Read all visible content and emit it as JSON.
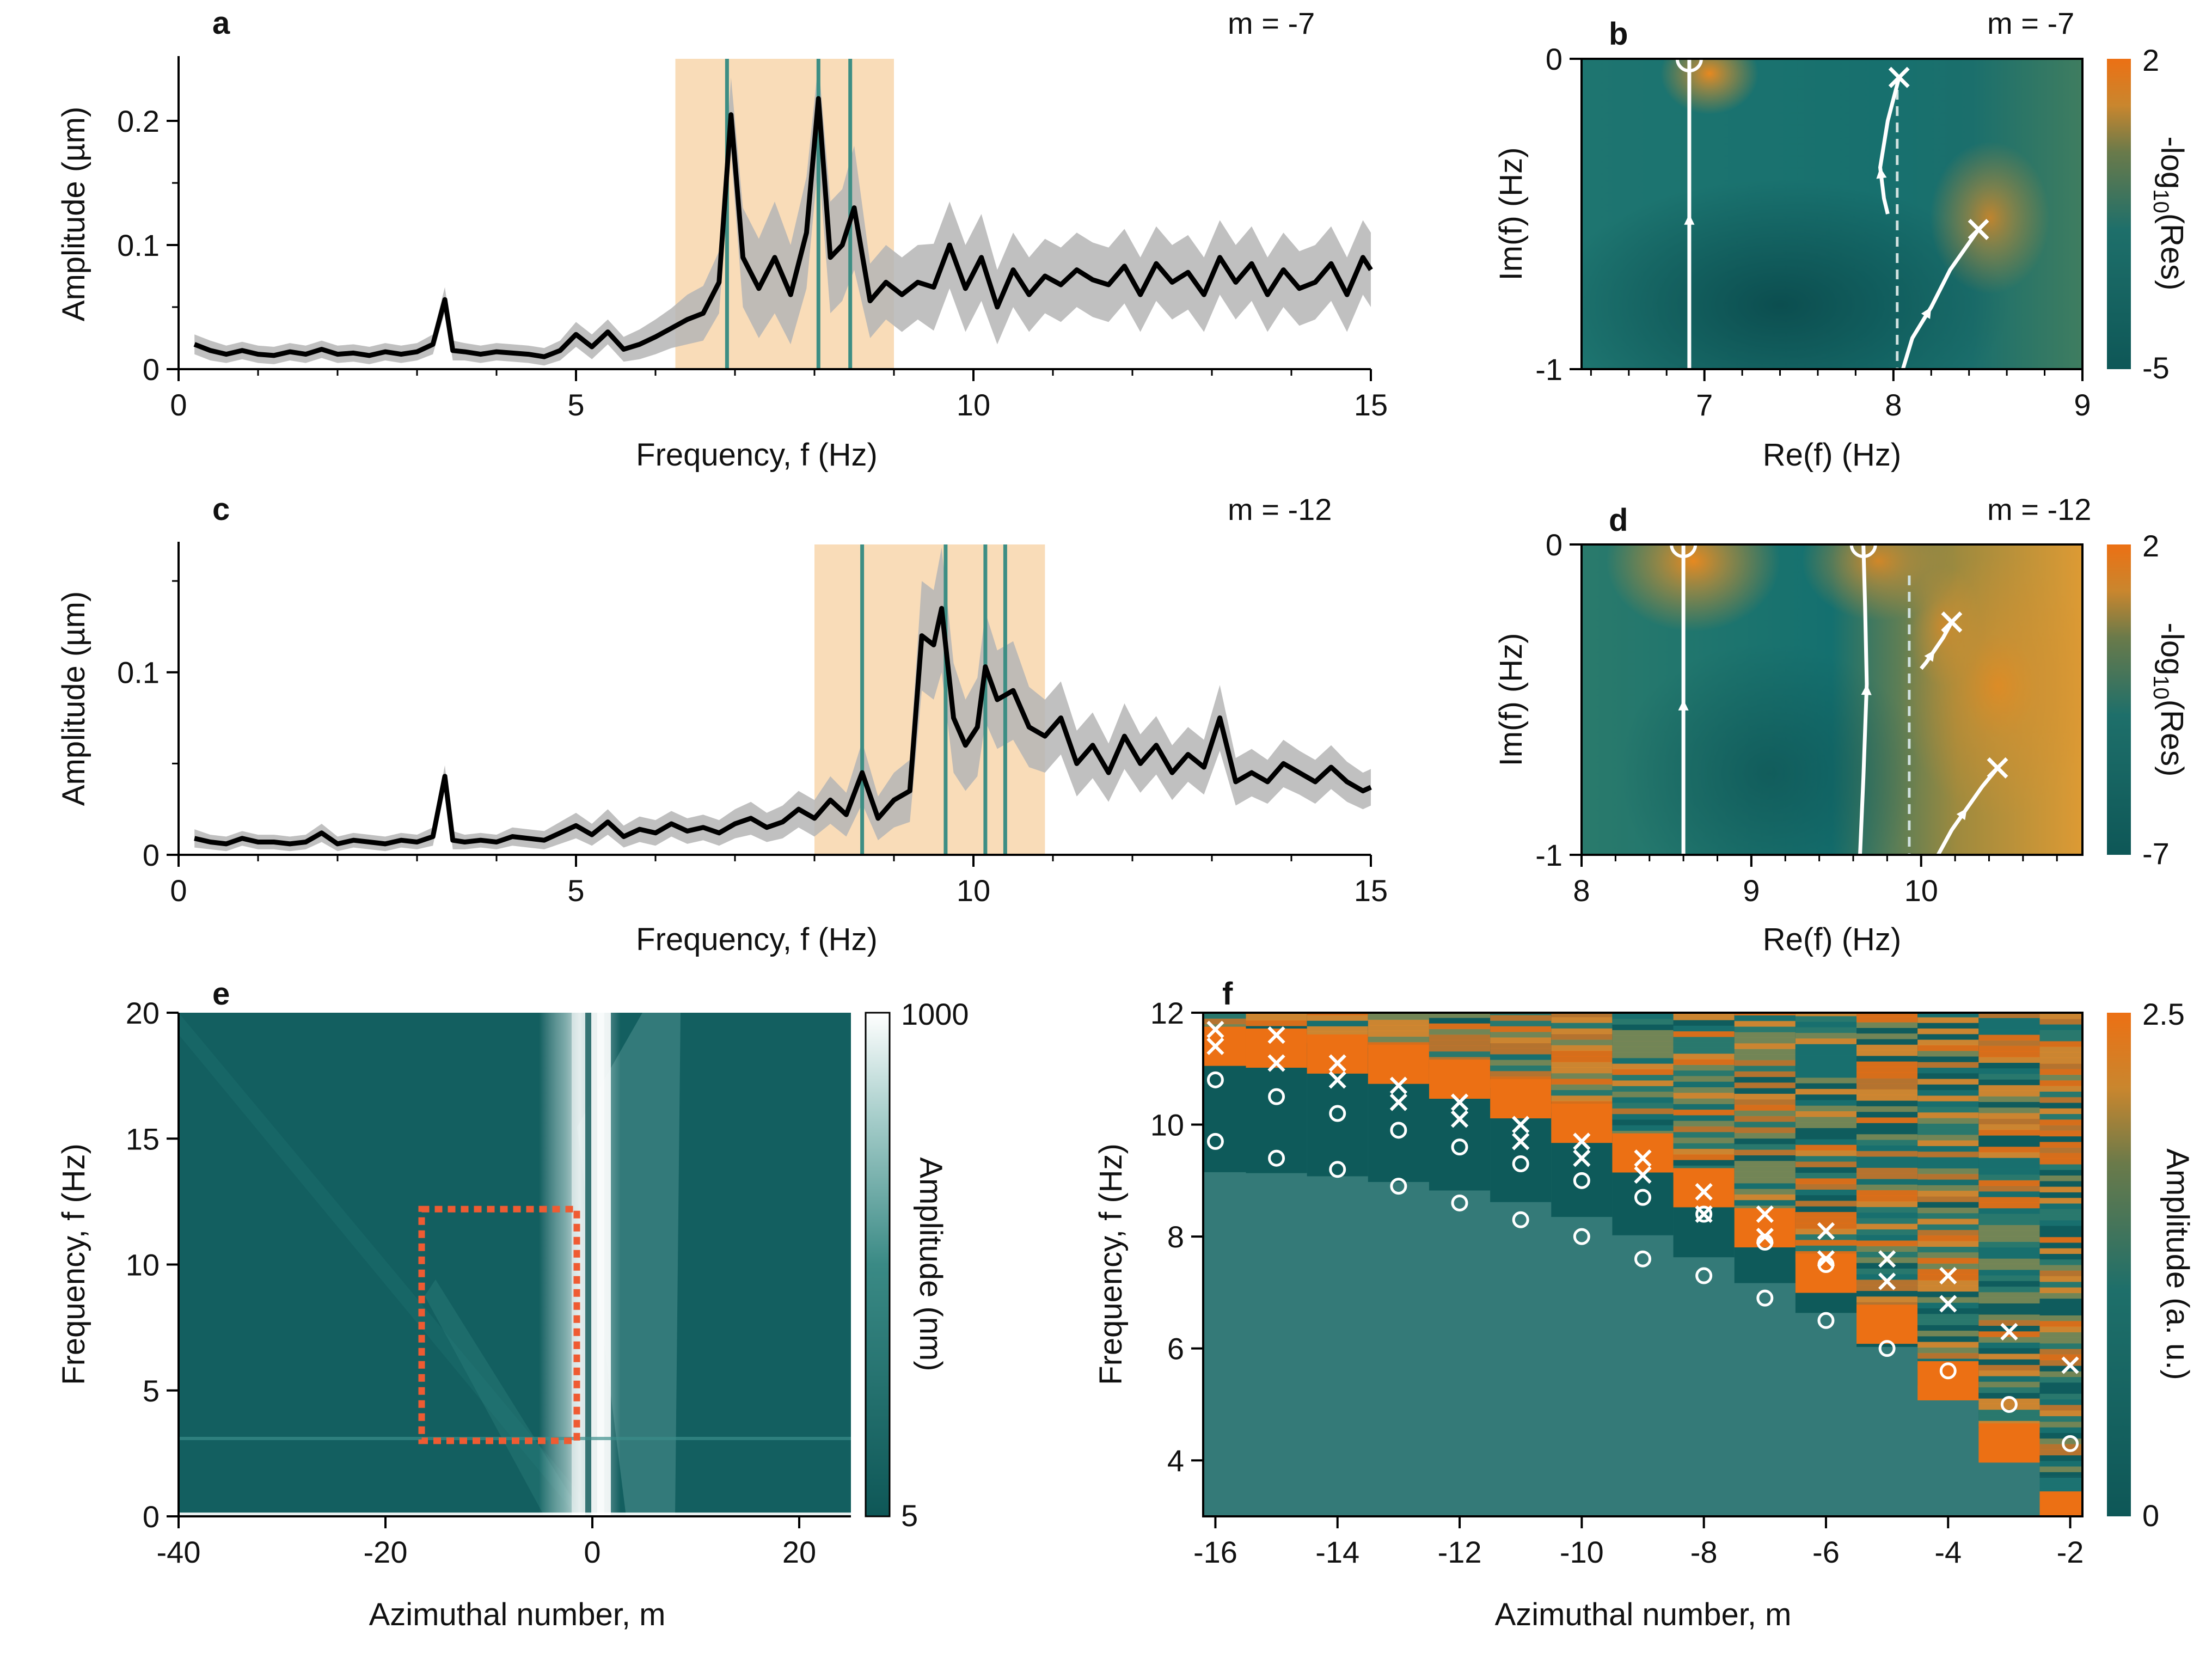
{
  "colors": {
    "teal_dark": "#0e5757",
    "teal": "#1a7373",
    "teal_mid": "#2f7f7c",
    "orange": "#ec7014",
    "amber": "#e09a35",
    "peach_band": "#f9dcb8",
    "line": "#000000",
    "grey_band": "#b5b5b5",
    "green_line": "#3d8e84",
    "red_box": "#ef5b32",
    "white": "#ffffff"
  },
  "chart_data": [
    {
      "panel": "a",
      "type": "line",
      "annotation": "m = -7",
      "xlabel": "Frequency, f (Hz)",
      "ylabel": "Amplitude (µm)",
      "xlim": [
        0,
        15
      ],
      "ylim": [
        0,
        0.25
      ],
      "xticks": [
        "0",
        "5",
        "10",
        "15"
      ],
      "yticks": [
        "0",
        "0.1",
        "0.2"
      ],
      "shaded_band_hz": [
        6.25,
        9.0
      ],
      "resonance_lines_hz": [
        6.9,
        8.05,
        8.45
      ],
      "x": [
        0.2,
        0.4,
        0.6,
        0.8,
        1.0,
        1.2,
        1.4,
        1.6,
        1.8,
        2.0,
        2.2,
        2.4,
        2.6,
        2.8,
        3.0,
        3.2,
        3.35,
        3.45,
        3.6,
        3.8,
        4.0,
        4.2,
        4.4,
        4.6,
        4.8,
        5.0,
        5.2,
        5.4,
        5.6,
        5.8,
        6.0,
        6.2,
        6.4,
        6.6,
        6.8,
        6.95,
        7.1,
        7.3,
        7.5,
        7.7,
        7.9,
        8.05,
        8.2,
        8.35,
        8.5,
        8.7,
        8.9,
        9.1,
        9.3,
        9.5,
        9.7,
        9.9,
        10.1,
        10.3,
        10.5,
        10.7,
        10.9,
        11.1,
        11.3,
        11.5,
        11.7,
        11.9,
        12.1,
        12.3,
        12.5,
        12.7,
        12.9,
        13.1,
        13.3,
        13.5,
        13.7,
        13.9,
        14.1,
        14.3,
        14.5,
        14.7,
        14.9,
        15.0
      ],
      "y": [
        0.02,
        0.015,
        0.012,
        0.015,
        0.012,
        0.011,
        0.014,
        0.012,
        0.016,
        0.012,
        0.013,
        0.011,
        0.014,
        0.012,
        0.014,
        0.02,
        0.056,
        0.015,
        0.014,
        0.012,
        0.014,
        0.013,
        0.012,
        0.01,
        0.015,
        0.028,
        0.018,
        0.03,
        0.016,
        0.02,
        0.026,
        0.033,
        0.04,
        0.045,
        0.07,
        0.205,
        0.09,
        0.065,
        0.09,
        0.06,
        0.11,
        0.218,
        0.09,
        0.1,
        0.13,
        0.055,
        0.07,
        0.06,
        0.07,
        0.066,
        0.1,
        0.065,
        0.09,
        0.05,
        0.08,
        0.06,
        0.075,
        0.068,
        0.08,
        0.072,
        0.068,
        0.083,
        0.06,
        0.085,
        0.07,
        0.078,
        0.06,
        0.09,
        0.07,
        0.085,
        0.06,
        0.08,
        0.065,
        0.07,
        0.085,
        0.06,
        0.09,
        0.08
      ],
      "band_width": [
        0.008,
        0.008,
        0.007,
        0.007,
        0.007,
        0.007,
        0.007,
        0.007,
        0.007,
        0.007,
        0.007,
        0.007,
        0.007,
        0.007,
        0.007,
        0.008,
        0.01,
        0.008,
        0.007,
        0.007,
        0.007,
        0.007,
        0.007,
        0.007,
        0.008,
        0.01,
        0.01,
        0.01,
        0.01,
        0.012,
        0.014,
        0.016,
        0.02,
        0.022,
        0.025,
        0.03,
        0.04,
        0.04,
        0.045,
        0.04,
        0.045,
        0.05,
        0.045,
        0.045,
        0.05,
        0.03,
        0.03,
        0.03,
        0.03,
        0.035,
        0.035,
        0.035,
        0.035,
        0.03,
        0.03,
        0.03,
        0.03,
        0.03,
        0.03,
        0.03,
        0.03,
        0.03,
        0.03,
        0.03,
        0.03,
        0.03,
        0.03,
        0.03,
        0.03,
        0.03,
        0.03,
        0.03,
        0.03,
        0.03,
        0.03,
        0.03,
        0.03,
        0.03
      ]
    },
    {
      "panel": "b",
      "type": "heatmap",
      "annotation": "m = -7",
      "xlabel": "Re(f) (Hz)",
      "ylabel": "Im(f) (Hz)",
      "xlim": [
        6.35,
        9.0
      ],
      "ylim": [
        -1,
        0
      ],
      "xticks": [
        "7",
        "8",
        "9"
      ],
      "yticks": [
        "0",
        "-1"
      ],
      "colorbar_label": "-log10(Res)",
      "colorbar_ticks": [
        "2",
        "-5"
      ],
      "zeros_circle": [
        [
          6.92,
          0.0
        ]
      ],
      "poles_cross": [
        [
          8.03,
          -0.06
        ],
        [
          8.45,
          -0.55
        ]
      ],
      "branch_cut_re": 8.02
    },
    {
      "panel": "c",
      "type": "line",
      "annotation": "m = -12",
      "xlabel": "Frequency, f (Hz)",
      "ylabel": "Amplitude (µm)",
      "xlim": [
        0,
        15
      ],
      "ylim": [
        0,
        0.17
      ],
      "xticks": [
        "0",
        "5",
        "10",
        "15"
      ],
      "yticks": [
        "0",
        "0.1"
      ],
      "shaded_band_hz": [
        8.0,
        10.9
      ],
      "resonance_lines_hz": [
        8.6,
        9.65,
        10.15,
        10.4
      ],
      "x": [
        0.2,
        0.4,
        0.6,
        0.8,
        1.0,
        1.2,
        1.4,
        1.6,
        1.8,
        2.0,
        2.2,
        2.4,
        2.6,
        2.8,
        3.0,
        3.2,
        3.35,
        3.45,
        3.6,
        3.8,
        4.0,
        4.2,
        4.4,
        4.6,
        4.8,
        5.0,
        5.2,
        5.4,
        5.6,
        5.8,
        6.0,
        6.2,
        6.4,
        6.6,
        6.8,
        7.0,
        7.2,
        7.4,
        7.6,
        7.8,
        8.0,
        8.2,
        8.4,
        8.6,
        8.8,
        9.0,
        9.2,
        9.35,
        9.5,
        9.6,
        9.75,
        9.9,
        10.05,
        10.15,
        10.3,
        10.5,
        10.7,
        10.9,
        11.1,
        11.3,
        11.5,
        11.7,
        11.9,
        12.1,
        12.3,
        12.5,
        12.7,
        12.9,
        13.1,
        13.3,
        13.5,
        13.7,
        13.9,
        14.1,
        14.3,
        14.5,
        14.7,
        14.9,
        15.0
      ],
      "y": [
        0.009,
        0.007,
        0.006,
        0.009,
        0.007,
        0.007,
        0.006,
        0.007,
        0.012,
        0.006,
        0.008,
        0.007,
        0.006,
        0.008,
        0.007,
        0.01,
        0.043,
        0.008,
        0.007,
        0.008,
        0.007,
        0.01,
        0.009,
        0.008,
        0.012,
        0.016,
        0.011,
        0.018,
        0.01,
        0.014,
        0.012,
        0.017,
        0.013,
        0.015,
        0.012,
        0.017,
        0.02,
        0.015,
        0.018,
        0.025,
        0.02,
        0.03,
        0.022,
        0.045,
        0.02,
        0.03,
        0.035,
        0.12,
        0.115,
        0.135,
        0.075,
        0.06,
        0.07,
        0.103,
        0.085,
        0.09,
        0.07,
        0.065,
        0.075,
        0.05,
        0.06,
        0.045,
        0.065,
        0.05,
        0.06,
        0.045,
        0.055,
        0.048,
        0.075,
        0.04,
        0.045,
        0.04,
        0.05,
        0.045,
        0.04,
        0.048,
        0.04,
        0.035,
        0.037
      ],
      "band_width": [
        0.005,
        0.004,
        0.004,
        0.004,
        0.004,
        0.004,
        0.004,
        0.004,
        0.005,
        0.004,
        0.004,
        0.004,
        0.004,
        0.004,
        0.004,
        0.005,
        0.006,
        0.005,
        0.004,
        0.004,
        0.004,
        0.005,
        0.005,
        0.005,
        0.006,
        0.007,
        0.006,
        0.007,
        0.006,
        0.007,
        0.007,
        0.007,
        0.007,
        0.007,
        0.007,
        0.008,
        0.009,
        0.008,
        0.009,
        0.01,
        0.01,
        0.013,
        0.012,
        0.017,
        0.012,
        0.015,
        0.017,
        0.03,
        0.03,
        0.035,
        0.03,
        0.025,
        0.027,
        0.03,
        0.027,
        0.027,
        0.022,
        0.02,
        0.02,
        0.018,
        0.018,
        0.016,
        0.018,
        0.016,
        0.016,
        0.015,
        0.015,
        0.015,
        0.018,
        0.013,
        0.013,
        0.012,
        0.013,
        0.012,
        0.012,
        0.012,
        0.011,
        0.01,
        0.01
      ]
    },
    {
      "panel": "d",
      "type": "heatmap",
      "annotation": "m = -12",
      "xlabel": "Re(f) (Hz)",
      "ylabel": "Im(f) (Hz)",
      "xlim": [
        8.0,
        10.95
      ],
      "ylim": [
        -1,
        0
      ],
      "xticks": [
        "8",
        "9",
        "10"
      ],
      "yticks": [
        "0",
        "-1"
      ],
      "colorbar_label": "-log10(Res)",
      "colorbar_ticks": [
        "2",
        "-7"
      ],
      "zeros_circle": [
        [
          8.6,
          0.0
        ],
        [
          9.66,
          0.0
        ]
      ],
      "poles_cross": [
        [
          10.18,
          -0.25
        ],
        [
          10.45,
          -0.72
        ]
      ],
      "branch_cut_re": 9.93
    },
    {
      "panel": "e",
      "type": "heatmap",
      "xlabel": "Azimuthal number, m",
      "ylabel": "Frequency, f (Hz)",
      "xlim": [
        -40,
        25
      ],
      "ylim": [
        0,
        20
      ],
      "xticks": [
        "-40",
        "-20",
        "0",
        "20"
      ],
      "yticks": [
        "0",
        "5",
        "10",
        "15",
        "20"
      ],
      "colorbar_label": "Amplitude (nm)",
      "colorbar_ticks": [
        "1000",
        "5"
      ],
      "highlight_box": {
        "m": [
          -16.5,
          -1.5
        ],
        "f": [
          3,
          12.2
        ]
      }
    },
    {
      "panel": "f",
      "type": "heatmap",
      "xlabel": "Azimuthal number, m",
      "ylabel": "Frequency, f (Hz)",
      "xlim": [
        -16.2,
        -1.8
      ],
      "ylim": [
        3,
        12
      ],
      "xticks": [
        "-16",
        "-14",
        "-12",
        "-10",
        "-8",
        "-6",
        "-4",
        "-2"
      ],
      "yticks": [
        "4",
        "6",
        "8",
        "10",
        "12"
      ],
      "colorbar_label": "Amplitude (a. u.)",
      "colorbar_ticks": [
        "2.5",
        "0"
      ],
      "crosses_upper": [
        [
          -16,
          11.7
        ],
        [
          -15,
          11.6
        ],
        [
          -14,
          11.1
        ],
        [
          -13,
          10.7
        ],
        [
          -12,
          10.4
        ],
        [
          -11,
          10.0
        ],
        [
          -10,
          9.7
        ],
        [
          -9,
          9.4
        ],
        [
          -8,
          8.8
        ],
        [
          -7,
          8.4
        ],
        [
          -6,
          8.1
        ],
        [
          -5,
          7.6
        ],
        [
          -4,
          7.3
        ],
        [
          -3,
          6.3
        ],
        [
          -2,
          5.7
        ]
      ],
      "crosses_lower": [
        [
          -16,
          11.4
        ],
        [
          -15,
          11.1
        ],
        [
          -14,
          10.8
        ],
        [
          -13,
          10.4
        ],
        [
          -12,
          10.1
        ],
        [
          -11,
          9.7
        ],
        [
          -10,
          9.4
        ],
        [
          -9,
          9.1
        ],
        [
          -8,
          8.4
        ],
        [
          -7,
          8.0
        ],
        [
          -6,
          7.6
        ],
        [
          -5,
          7.2
        ],
        [
          -4,
          6.8
        ]
      ],
      "circles_upper": [
        [
          -16,
          10.8
        ],
        [
          -15,
          10.5
        ],
        [
          -14,
          10.2
        ],
        [
          -13,
          9.9
        ],
        [
          -12,
          9.6
        ],
        [
          -11,
          9.3
        ],
        [
          -10,
          9.0
        ],
        [
          -9,
          8.7
        ],
        [
          -8,
          8.4
        ],
        [
          -7,
          7.9
        ],
        [
          -6,
          7.5
        ]
      ],
      "circles_lower": [
        [
          -16,
          9.7
        ],
        [
          -15,
          9.4
        ],
        [
          -14,
          9.2
        ],
        [
          -13,
          8.9
        ],
        [
          -12,
          8.6
        ],
        [
          -11,
          8.3
        ],
        [
          -10,
          8.0
        ],
        [
          -9,
          7.6
        ],
        [
          -8,
          7.3
        ],
        [
          -7,
          6.9
        ],
        [
          -6,
          6.5
        ],
        [
          -5,
          6.0
        ],
        [
          -4,
          5.6
        ],
        [
          -3,
          5.0
        ],
        [
          -2,
          4.3
        ]
      ]
    }
  ]
}
